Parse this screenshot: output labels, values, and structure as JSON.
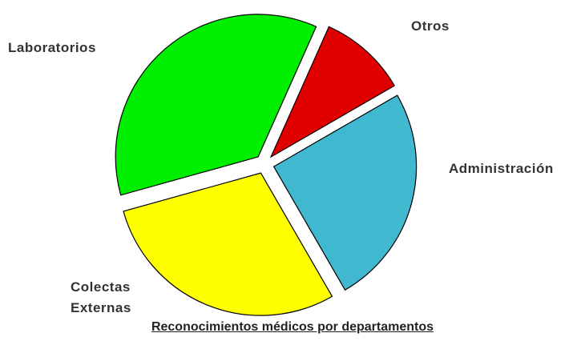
{
  "chart_data": {
    "type": "pie",
    "title": "Reconocimientos médicos por departamentos",
    "categories": [
      "Otros",
      "Administración",
      "Colectas Externas",
      "Laboratorios"
    ],
    "values": [
      10,
      25,
      29,
      36
    ],
    "colors": [
      "#e00000",
      "#40b8d0",
      "#ffff00",
      "#00ee00"
    ]
  }
}
